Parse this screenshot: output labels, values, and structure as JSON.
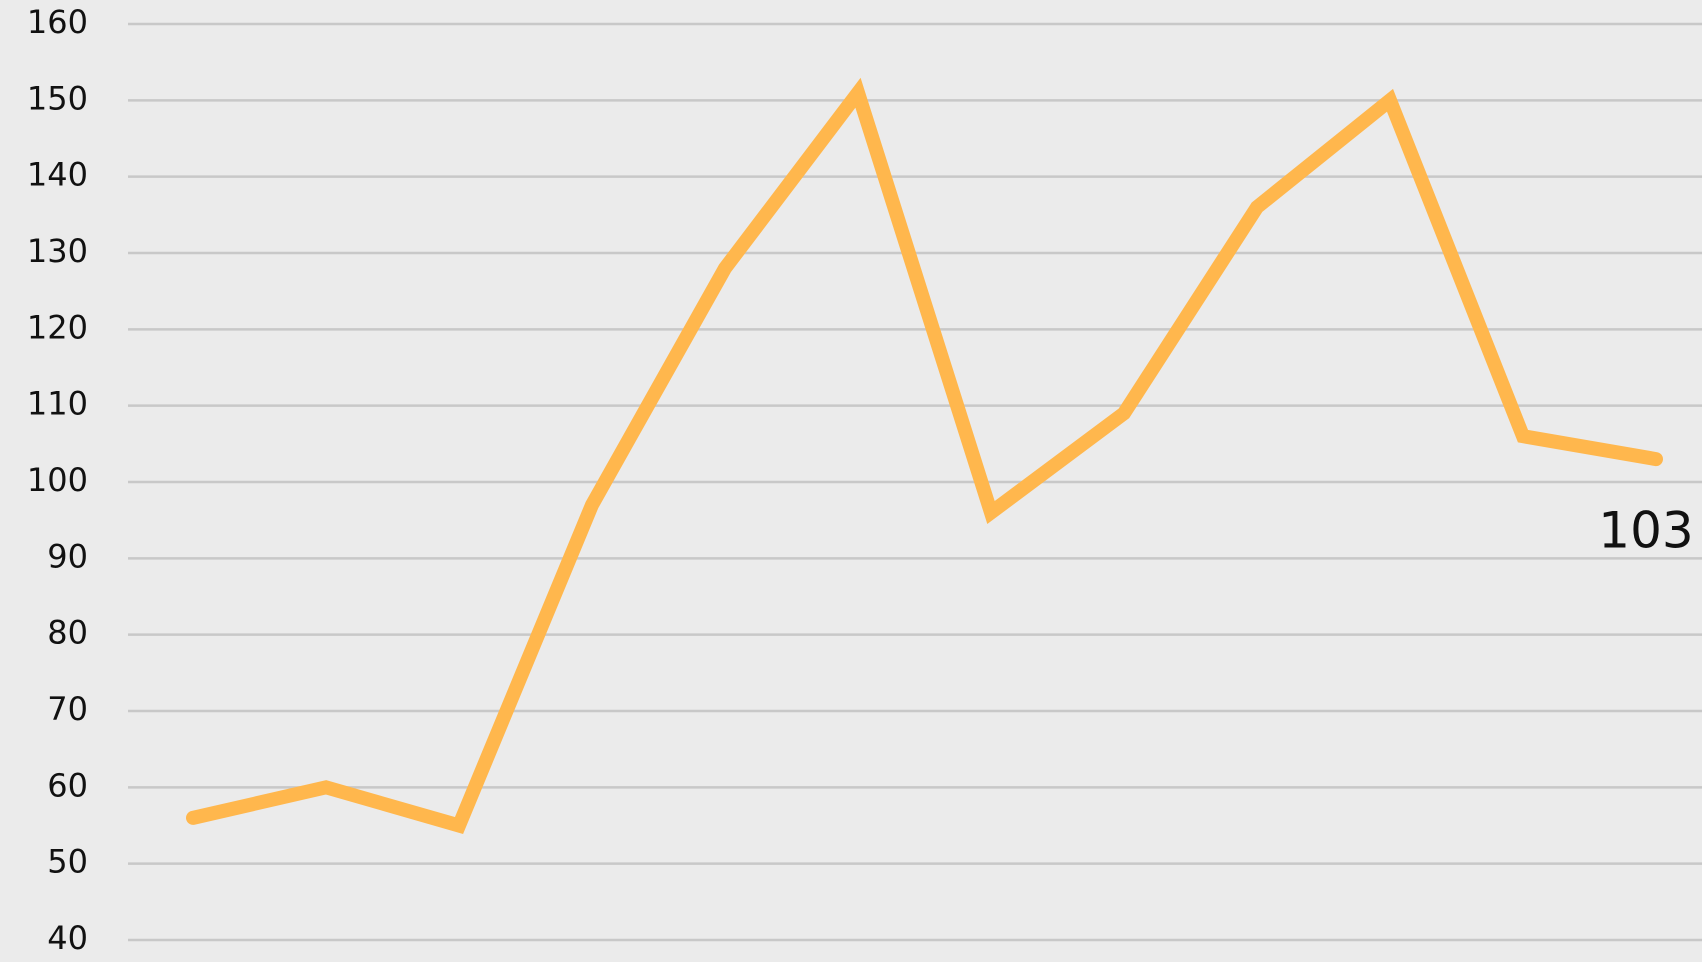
{
  "chart_data": {
    "type": "line",
    "categories": [
      null,
      null,
      null,
      null,
      null,
      null,
      null,
      null,
      null,
      null,
      null,
      null
    ],
    "values": [
      56,
      60,
      55,
      97,
      128,
      151,
      96,
      109,
      136,
      150,
      106,
      103
    ],
    "color": "#ffb74d",
    "ylim": [
      40,
      160
    ],
    "yticks": [
      40,
      50,
      60,
      70,
      80,
      90,
      100,
      110,
      120,
      130,
      140,
      150,
      160
    ],
    "grid": true
  }
}
